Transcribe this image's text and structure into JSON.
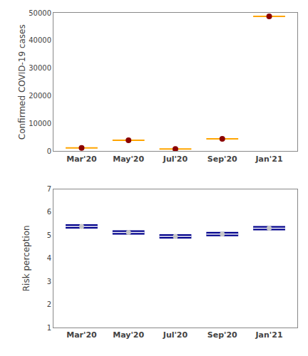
{
  "chart_data": [
    {
      "type": "scatter",
      "categories": [
        "Mar'20",
        "May'20",
        "Jul'20",
        "Sep'20",
        "Jan'21"
      ],
      "series": [
        {
          "values": [
            1200,
            4000,
            800,
            4500,
            48700
          ],
          "color": "#FFA500",
          "marker": "line"
        },
        {
          "values": [
            1200,
            4000,
            800,
            4500,
            48700
          ],
          "color": "#8B0000",
          "marker": "circle"
        }
      ],
      "ylabel": "Confirmed COVID-19 cases",
      "ylim": [
        0,
        50000
      ],
      "yticks": [
        0,
        10000,
        20000,
        30000,
        40000,
        50000
      ],
      "grid": false
    },
    {
      "type": "scatter",
      "categories": [
        "Mar'20",
        "May'20",
        "Jul'20",
        "Sep'20",
        "Jan'21"
      ],
      "series": [
        {
          "values": [
            5.38,
            5.12,
            4.95,
            5.05,
            5.3
          ],
          "color": "#00008B",
          "marker": "line"
        },
        {
          "values": [
            5.38,
            5.12,
            4.95,
            5.05,
            5.3
          ],
          "color": "#FFFFFF",
          "marker": "line"
        },
        {
          "values": [
            5.38,
            5.12,
            4.95,
            5.05,
            5.3
          ],
          "color": "#C8C8C8",
          "marker": "circle"
        }
      ],
      "ylabel": "Risk perception",
      "ylim": [
        1,
        7
      ],
      "yticks": [
        1,
        2,
        3,
        4,
        5,
        6,
        7
      ],
      "grid": false
    }
  ]
}
